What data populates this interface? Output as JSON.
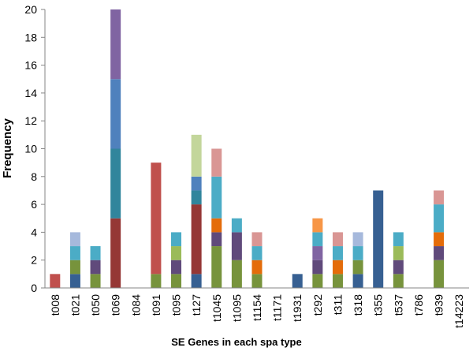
{
  "chart_data": {
    "type": "stacked_bar",
    "x_label": "SE Genes in each spa type",
    "y_label": "Frequency",
    "categories": [
      "t008",
      "t021",
      "t050",
      "t069",
      "t084",
      "t091",
      "t095",
      "t127",
      "t1045",
      "t1095",
      "t1154",
      "t1171",
      "t1931",
      "t292",
      "t311",
      "t318",
      "t355",
      "t537",
      "t786",
      "t939",
      "t14223"
    ],
    "series": [
      {
        "values": [
          1,
          1,
          1,
          5,
          0,
          1,
          1,
          1,
          3,
          2,
          1,
          0,
          1,
          1,
          1,
          1,
          7,
          1,
          0,
          2,
          0
        ],
        "colors": [
          "#c0504d",
          "#376092",
          "#77933c",
          "#953735",
          null,
          "#77933c",
          "#77933c",
          "#376092",
          "#77933c",
          "#77933c",
          "#77933c",
          null,
          "#376092",
          "#77933c",
          "#77933c",
          "#376092",
          "#376092",
          "#77933c",
          null,
          "#77933c",
          null
        ]
      },
      {
        "values": [
          null,
          1,
          1,
          5,
          null,
          8,
          1,
          5,
          1,
          2,
          1,
          null,
          null,
          1,
          1,
          1,
          null,
          1,
          null,
          1,
          null
        ],
        "colors": [
          null,
          "#77933c",
          "#604a7b",
          "#31859c",
          null,
          "#c0504d",
          "#604a7b",
          "#953735",
          "#604a7b",
          "#604a7b",
          "#e46c0a",
          null,
          null,
          "#604a7b",
          "#e46c0a",
          "#77933c",
          null,
          "#604a7b",
          null,
          "#604a7b",
          null
        ]
      },
      {
        "values": [
          null,
          1,
          1,
          5,
          null,
          null,
          1,
          1,
          1,
          1,
          1,
          null,
          null,
          1,
          1,
          1,
          null,
          1,
          null,
          1,
          null
        ],
        "colors": [
          null,
          "#4bacc6",
          "#4bacc6",
          "#4f81bd",
          null,
          null,
          "#9bbb59",
          "#31859c",
          "#e46c0a",
          "#4bacc6",
          "#4bacc6",
          null,
          null,
          "#8064a2",
          "#4bacc6",
          "#4bacc6",
          null,
          "#9bbb59",
          null,
          "#e46c0a",
          null
        ]
      },
      {
        "values": [
          null,
          1,
          null,
          5,
          null,
          null,
          1,
          1,
          3,
          null,
          1,
          null,
          null,
          1,
          1,
          1,
          null,
          1,
          null,
          2,
          null
        ],
        "colors": [
          null,
          "#a6b9dc",
          null,
          "#8064a2",
          null,
          null,
          "#4bacc6",
          "#4f81bd",
          "#4bacc6",
          null,
          "#d99694",
          null,
          null,
          "#4bacc6",
          "#d99694",
          "#a6b9dc",
          null,
          "#4bacc6",
          null,
          "#4bacc6",
          null
        ]
      },
      {
        "values": [
          null,
          null,
          null,
          null,
          null,
          null,
          null,
          3,
          2,
          null,
          null,
          null,
          null,
          1,
          null,
          null,
          null,
          null,
          null,
          1,
          null
        ],
        "colors": [
          null,
          null,
          null,
          null,
          null,
          null,
          null,
          "#c3d69b",
          "#d99694",
          null,
          null,
          null,
          null,
          "#f79646",
          null,
          null,
          null,
          null,
          null,
          "#d99694",
          null
        ]
      }
    ],
    "ylim": [
      0,
      20
    ],
    "yticks": [
      0,
      2,
      4,
      6,
      8,
      10,
      12,
      14,
      16,
      18,
      20
    ]
  }
}
